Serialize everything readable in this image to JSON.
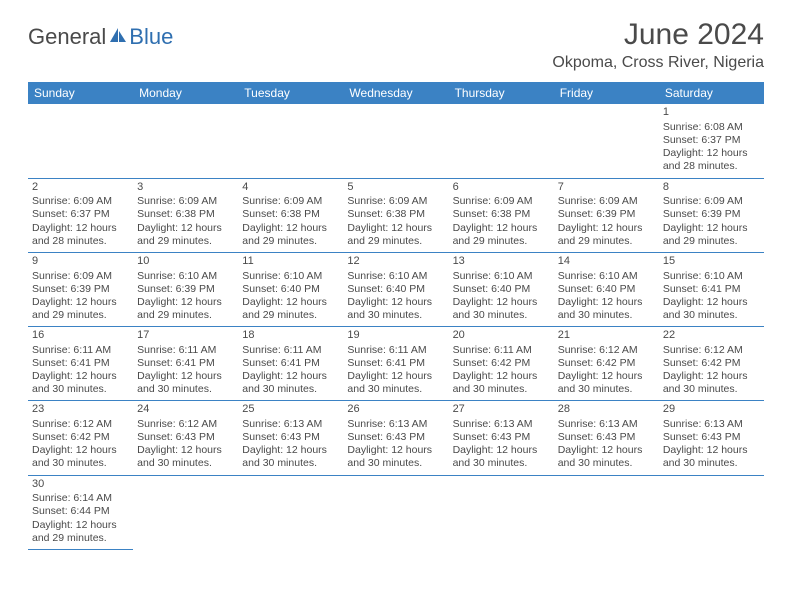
{
  "brand": {
    "part1": "General",
    "part2": "Blue"
  },
  "title": "June 2024",
  "location": "Okpoma, Cross River, Nigeria",
  "colors": {
    "header_bg": "#3b82c4",
    "header_fg": "#ffffff",
    "text": "#4a4a4a",
    "rule": "#3b82c4",
    "page_bg": "#ffffff"
  },
  "weekdays": [
    "Sunday",
    "Monday",
    "Tuesday",
    "Wednesday",
    "Thursday",
    "Friday",
    "Saturday"
  ],
  "cells": [
    [
      null,
      null,
      null,
      null,
      null,
      null,
      {
        "n": "1",
        "sr": "Sunrise: 6:08 AM",
        "ss": "Sunset: 6:37 PM",
        "d1": "Daylight: 12 hours",
        "d2": "and 28 minutes."
      }
    ],
    [
      {
        "n": "2",
        "sr": "Sunrise: 6:09 AM",
        "ss": "Sunset: 6:37 PM",
        "d1": "Daylight: 12 hours",
        "d2": "and 28 minutes."
      },
      {
        "n": "3",
        "sr": "Sunrise: 6:09 AM",
        "ss": "Sunset: 6:38 PM",
        "d1": "Daylight: 12 hours",
        "d2": "and 29 minutes."
      },
      {
        "n": "4",
        "sr": "Sunrise: 6:09 AM",
        "ss": "Sunset: 6:38 PM",
        "d1": "Daylight: 12 hours",
        "d2": "and 29 minutes."
      },
      {
        "n": "5",
        "sr": "Sunrise: 6:09 AM",
        "ss": "Sunset: 6:38 PM",
        "d1": "Daylight: 12 hours",
        "d2": "and 29 minutes."
      },
      {
        "n": "6",
        "sr": "Sunrise: 6:09 AM",
        "ss": "Sunset: 6:38 PM",
        "d1": "Daylight: 12 hours",
        "d2": "and 29 minutes."
      },
      {
        "n": "7",
        "sr": "Sunrise: 6:09 AM",
        "ss": "Sunset: 6:39 PM",
        "d1": "Daylight: 12 hours",
        "d2": "and 29 minutes."
      },
      {
        "n": "8",
        "sr": "Sunrise: 6:09 AM",
        "ss": "Sunset: 6:39 PM",
        "d1": "Daylight: 12 hours",
        "d2": "and 29 minutes."
      }
    ],
    [
      {
        "n": "9",
        "sr": "Sunrise: 6:09 AM",
        "ss": "Sunset: 6:39 PM",
        "d1": "Daylight: 12 hours",
        "d2": "and 29 minutes."
      },
      {
        "n": "10",
        "sr": "Sunrise: 6:10 AM",
        "ss": "Sunset: 6:39 PM",
        "d1": "Daylight: 12 hours",
        "d2": "and 29 minutes."
      },
      {
        "n": "11",
        "sr": "Sunrise: 6:10 AM",
        "ss": "Sunset: 6:40 PM",
        "d1": "Daylight: 12 hours",
        "d2": "and 29 minutes."
      },
      {
        "n": "12",
        "sr": "Sunrise: 6:10 AM",
        "ss": "Sunset: 6:40 PM",
        "d1": "Daylight: 12 hours",
        "d2": "and 30 minutes."
      },
      {
        "n": "13",
        "sr": "Sunrise: 6:10 AM",
        "ss": "Sunset: 6:40 PM",
        "d1": "Daylight: 12 hours",
        "d2": "and 30 minutes."
      },
      {
        "n": "14",
        "sr": "Sunrise: 6:10 AM",
        "ss": "Sunset: 6:40 PM",
        "d1": "Daylight: 12 hours",
        "d2": "and 30 minutes."
      },
      {
        "n": "15",
        "sr": "Sunrise: 6:10 AM",
        "ss": "Sunset: 6:41 PM",
        "d1": "Daylight: 12 hours",
        "d2": "and 30 minutes."
      }
    ],
    [
      {
        "n": "16",
        "sr": "Sunrise: 6:11 AM",
        "ss": "Sunset: 6:41 PM",
        "d1": "Daylight: 12 hours",
        "d2": "and 30 minutes."
      },
      {
        "n": "17",
        "sr": "Sunrise: 6:11 AM",
        "ss": "Sunset: 6:41 PM",
        "d1": "Daylight: 12 hours",
        "d2": "and 30 minutes."
      },
      {
        "n": "18",
        "sr": "Sunrise: 6:11 AM",
        "ss": "Sunset: 6:41 PM",
        "d1": "Daylight: 12 hours",
        "d2": "and 30 minutes."
      },
      {
        "n": "19",
        "sr": "Sunrise: 6:11 AM",
        "ss": "Sunset: 6:41 PM",
        "d1": "Daylight: 12 hours",
        "d2": "and 30 minutes."
      },
      {
        "n": "20",
        "sr": "Sunrise: 6:11 AM",
        "ss": "Sunset: 6:42 PM",
        "d1": "Daylight: 12 hours",
        "d2": "and 30 minutes."
      },
      {
        "n": "21",
        "sr": "Sunrise: 6:12 AM",
        "ss": "Sunset: 6:42 PM",
        "d1": "Daylight: 12 hours",
        "d2": "and 30 minutes."
      },
      {
        "n": "22",
        "sr": "Sunrise: 6:12 AM",
        "ss": "Sunset: 6:42 PM",
        "d1": "Daylight: 12 hours",
        "d2": "and 30 minutes."
      }
    ],
    [
      {
        "n": "23",
        "sr": "Sunrise: 6:12 AM",
        "ss": "Sunset: 6:42 PM",
        "d1": "Daylight: 12 hours",
        "d2": "and 30 minutes."
      },
      {
        "n": "24",
        "sr": "Sunrise: 6:12 AM",
        "ss": "Sunset: 6:43 PM",
        "d1": "Daylight: 12 hours",
        "d2": "and 30 minutes."
      },
      {
        "n": "25",
        "sr": "Sunrise: 6:13 AM",
        "ss": "Sunset: 6:43 PM",
        "d1": "Daylight: 12 hours",
        "d2": "and 30 minutes."
      },
      {
        "n": "26",
        "sr": "Sunrise: 6:13 AM",
        "ss": "Sunset: 6:43 PM",
        "d1": "Daylight: 12 hours",
        "d2": "and 30 minutes."
      },
      {
        "n": "27",
        "sr": "Sunrise: 6:13 AM",
        "ss": "Sunset: 6:43 PM",
        "d1": "Daylight: 12 hours",
        "d2": "and 30 minutes."
      },
      {
        "n": "28",
        "sr": "Sunrise: 6:13 AM",
        "ss": "Sunset: 6:43 PM",
        "d1": "Daylight: 12 hours",
        "d2": "and 30 minutes."
      },
      {
        "n": "29",
        "sr": "Sunrise: 6:13 AM",
        "ss": "Sunset: 6:43 PM",
        "d1": "Daylight: 12 hours",
        "d2": "and 30 minutes."
      }
    ],
    [
      {
        "n": "30",
        "sr": "Sunrise: 6:14 AM",
        "ss": "Sunset: 6:44 PM",
        "d1": "Daylight: 12 hours",
        "d2": "and 29 minutes."
      },
      null,
      null,
      null,
      null,
      null,
      null
    ]
  ]
}
